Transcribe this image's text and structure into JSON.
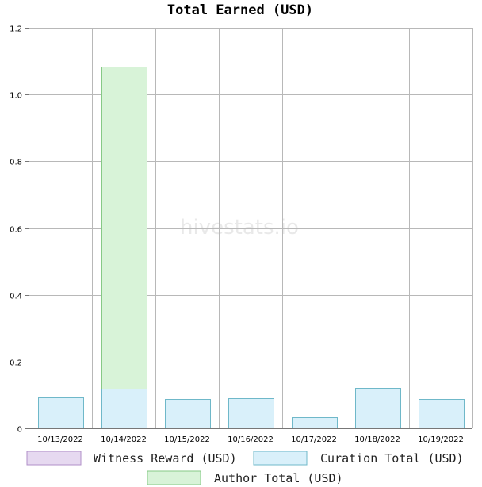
{
  "chart_data": {
    "type": "bar",
    "stacked": true,
    "title": "Total Earned (USD)",
    "xlabel": "",
    "ylabel": "",
    "categories": [
      "10/13/2022",
      "10/14/2022",
      "10/15/2022",
      "10/16/2022",
      "10/17/2022",
      "10/18/2022",
      "10/19/2022"
    ],
    "series": [
      {
        "name": "Witness Reward (USD)",
        "color": "#e6d9f0",
        "border": "#b08fc8",
        "values": [
          0,
          0,
          0,
          0,
          0,
          0,
          0
        ]
      },
      {
        "name": "Curation Total (USD)",
        "color": "#d9f0fa",
        "border": "#6fb8c9",
        "values": [
          0.092,
          0.118,
          0.089,
          0.091,
          0.034,
          0.122,
          0.089
        ]
      },
      {
        "name": "Author Total (USD)",
        "color": "#d8f3d8",
        "border": "#86c986",
        "values": [
          0,
          0.965,
          0,
          0,
          0,
          0,
          0
        ]
      }
    ],
    "ylim": [
      0,
      1.2
    ],
    "yticks": [
      "0",
      "0.2",
      "0.4",
      "0.6",
      "0.8",
      "1.0",
      "1.2"
    ],
    "grid": true,
    "legend_position": "bottom"
  },
  "watermark": "hivestats.io"
}
